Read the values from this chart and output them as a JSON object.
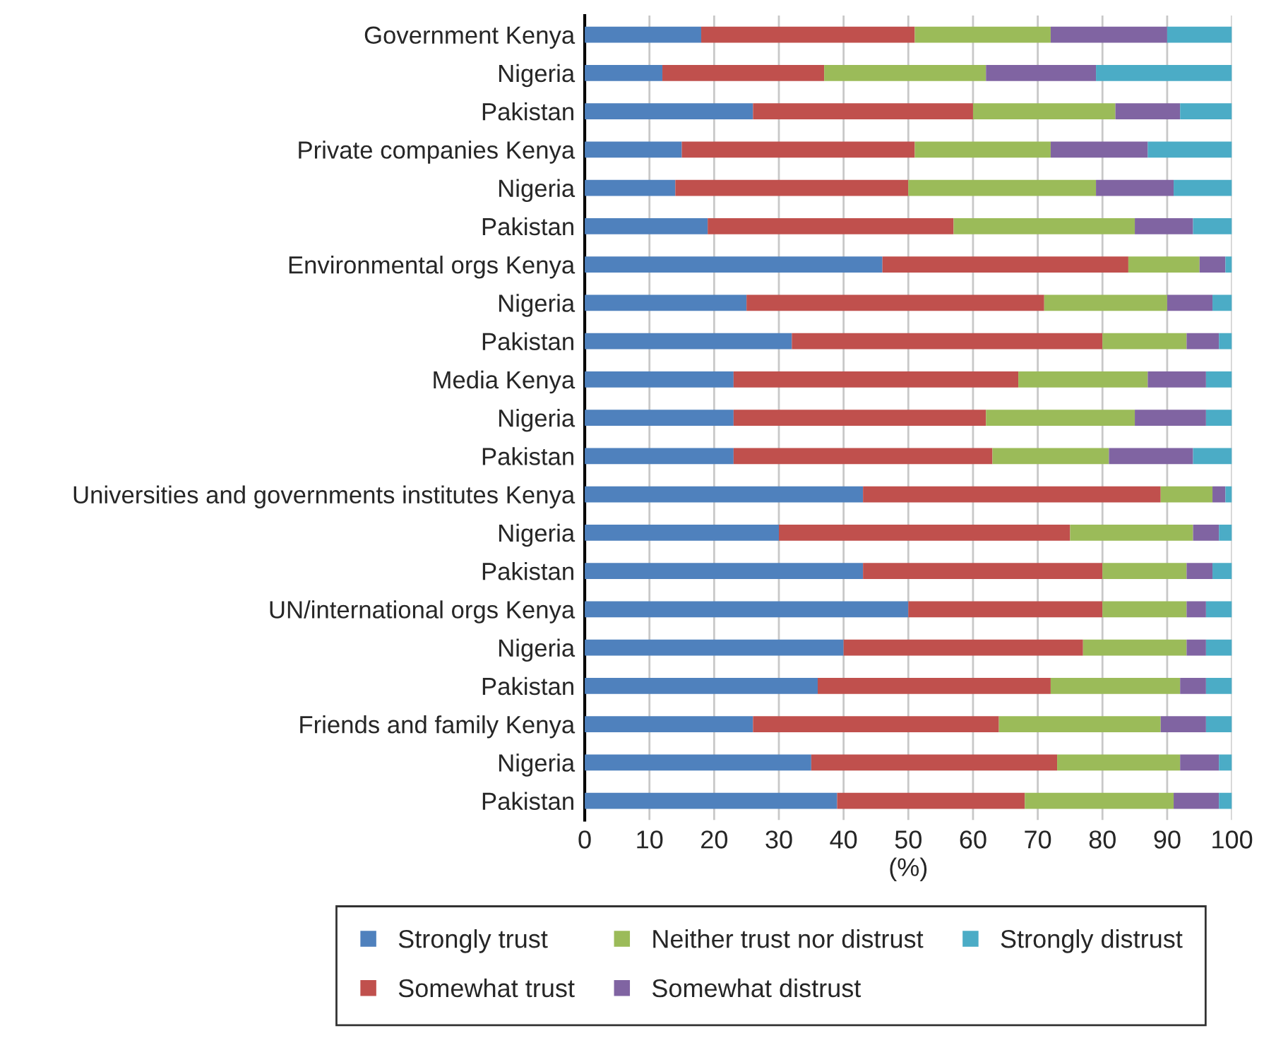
{
  "chart_data": {
    "type": "bar",
    "orientation": "horizontal",
    "stacked": true,
    "xlabel": "(%)",
    "categories": [
      "Government Kenya",
      "Nigeria",
      "Pakistan",
      "Private companies Kenya",
      "Nigeria",
      "Pakistan",
      "Environmental orgs Kenya",
      "Nigeria",
      "Pakistan",
      "Media Kenya",
      "Nigeria",
      "Pakistan",
      "Universities and governments institutes Kenya",
      "Nigeria",
      "Pakistan",
      "UN/international orgs Kenya",
      "Nigeria",
      "Pakistan",
      "Friends and family Kenya",
      "Nigeria",
      "Pakistan"
    ],
    "series": [
      {
        "name": "Strongly trust",
        "color": "#4f81bd",
        "values": [
          18,
          12,
          26,
          15,
          14,
          19,
          46,
          25,
          32,
          23,
          23,
          23,
          43,
          30,
          43,
          50,
          40,
          36,
          26,
          35,
          39
        ]
      },
      {
        "name": "Somewhat trust",
        "color": "#c0504d",
        "values": [
          33,
          25,
          34,
          36,
          36,
          38,
          38,
          46,
          48,
          44,
          39,
          40,
          46,
          45,
          37,
          30,
          37,
          36,
          38,
          38,
          29
        ]
      },
      {
        "name": "Neither trust nor distrust",
        "color": "#9bbb59",
        "values": [
          21,
          25,
          22,
          21,
          29,
          28,
          11,
          19,
          13,
          20,
          23,
          18,
          8,
          19,
          13,
          13,
          16,
          20,
          25,
          19,
          23
        ]
      },
      {
        "name": "Somewhat distrust",
        "color": "#8064a2",
        "values": [
          18,
          17,
          10,
          15,
          12,
          9,
          4,
          7,
          5,
          9,
          11,
          13,
          2,
          4,
          4,
          3,
          3,
          4,
          7,
          6,
          7
        ]
      },
      {
        "name": "Strongly distrust",
        "color": "#4bacc6",
        "values": [
          10,
          21,
          8,
          13,
          9,
          6,
          1,
          3,
          2,
          4,
          4,
          6,
          1,
          2,
          3,
          4,
          4,
          4,
          4,
          2,
          2
        ]
      }
    ],
    "xlim": [
      0,
      100
    ],
    "xticks": [
      0,
      10,
      20,
      30,
      40,
      50,
      60,
      70,
      80,
      90,
      100
    ],
    "grid": "x",
    "legend": "bottom"
  }
}
